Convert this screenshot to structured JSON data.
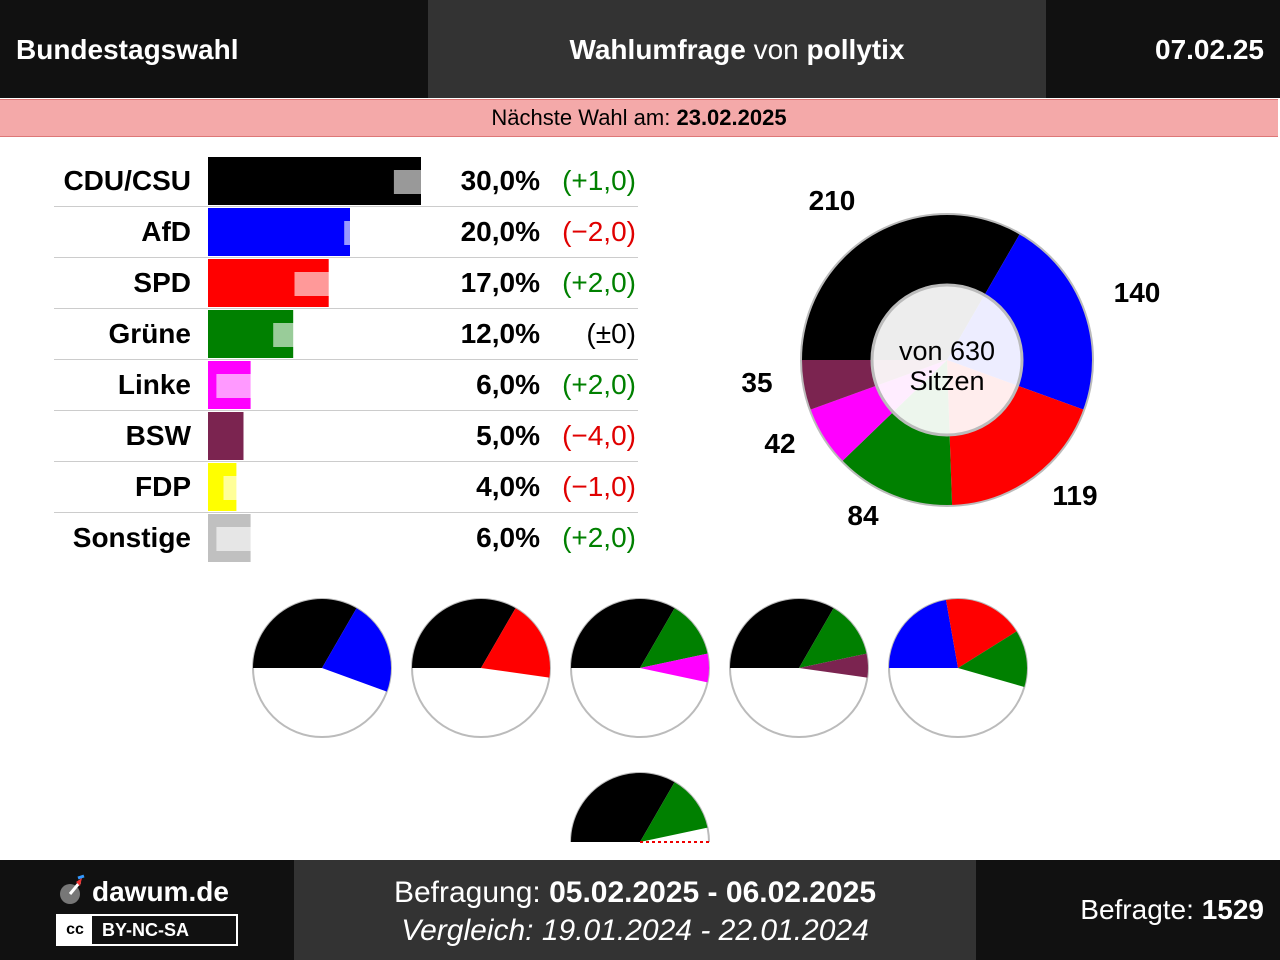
{
  "header": {
    "left_title": "Bundestagswahl",
    "center_prefix": "Wahlumfrage",
    "center_von": "von",
    "center_institute": "pollytix",
    "date": "07.02.25"
  },
  "next_election": {
    "label": "Nächste Wahl am:",
    "date": "23.02.2025"
  },
  "chart_data": [
    {
      "type": "bar",
      "categories": [
        "CDU/CSU",
        "AfD",
        "SPD",
        "Grüne",
        "Linke",
        "BSW",
        "FDP",
        "Sonstige"
      ],
      "values": [
        30.0,
        20.0,
        17.0,
        12.0,
        6.0,
        5.0,
        4.0,
        6.0
      ],
      "previous_values": [
        29.0,
        22.0,
        15.0,
        12.0,
        4.0,
        9.0,
        5.0,
        4.0
      ],
      "value_labels": [
        "30,0%",
        "20,0%",
        "17,0%",
        "12,0%",
        "6,0%",
        "5,0%",
        "4,0%",
        "6,0%"
      ],
      "change_labels": [
        "(+1,0)",
        "(−2,0)",
        "(+2,0)",
        "(±0)",
        "(+2,0)",
        "(−4,0)",
        "(−1,0)",
        "(+2,0)"
      ],
      "change_direction": [
        "up",
        "down",
        "up",
        "none",
        "up",
        "down",
        "down",
        "up"
      ],
      "colors": [
        "#000000",
        "#0000ff",
        "#ff0000",
        "#008000",
        "#ff00ff",
        "#7b2450",
        "#ffff00",
        "#c0c0c0"
      ],
      "xlim": [
        0,
        40
      ]
    },
    {
      "type": "pie",
      "title": "von 630 Sitzen",
      "title_line1": "von 630",
      "title_line2": "Sitzen",
      "categories": [
        "CDU/CSU",
        "AfD",
        "SPD",
        "Grüne",
        "Linke",
        "BSW"
      ],
      "values": [
        210,
        140,
        119,
        84,
        42,
        35
      ],
      "value_labels": [
        "210",
        "140",
        "119",
        "84",
        "42",
        "35"
      ],
      "colors": [
        "#000000",
        "#0000ff",
        "#ff0000",
        "#008000",
        "#ff00ff",
        "#7b2450"
      ]
    },
    {
      "type": "pie",
      "description": "Coalition half-circles (seats out of 630)",
      "total": 630,
      "coalitions": [
        {
          "parties": [
            "CDU/CSU",
            "AfD"
          ],
          "values": [
            210,
            140
          ],
          "colors": [
            "#000000",
            "#0000ff"
          ]
        },
        {
          "parties": [
            "CDU/CSU",
            "SPD"
          ],
          "values": [
            210,
            119
          ],
          "colors": [
            "#000000",
            "#ff0000"
          ]
        },
        {
          "parties": [
            "CDU/CSU",
            "Grüne",
            "Linke"
          ],
          "values": [
            210,
            84,
            42
          ],
          "colors": [
            "#000000",
            "#008000",
            "#ff00ff"
          ]
        },
        {
          "parties": [
            "CDU/CSU",
            "Grüne",
            "BSW"
          ],
          "values": [
            210,
            84,
            35
          ],
          "colors": [
            "#000000",
            "#008000",
            "#7b2450"
          ]
        },
        {
          "parties": [
            "AfD",
            "SPD",
            "Grüne"
          ],
          "values": [
            140,
            119,
            84
          ],
          "colors": [
            "#0000ff",
            "#ff0000",
            "#008000"
          ]
        },
        {
          "parties": [
            "CDU/CSU",
            "Grüne"
          ],
          "values": [
            210,
            84
          ],
          "colors": [
            "#000000",
            "#008000"
          ],
          "half_only": true
        }
      ]
    }
  ],
  "footer": {
    "brand": "dawum.de",
    "license_icon": "cc",
    "license": "BY-NC-SA",
    "survey_label": "Befragung:",
    "survey_period": "05.02.2025 - 06.02.2025",
    "compare_label": "Vergleich:",
    "compare_period": "19.01.2024 - 22.01.2024",
    "respondents_label": "Befragte:",
    "respondents": "1529"
  },
  "colors": {
    "up": "#008000",
    "down": "#e00000",
    "none": "#000000"
  }
}
